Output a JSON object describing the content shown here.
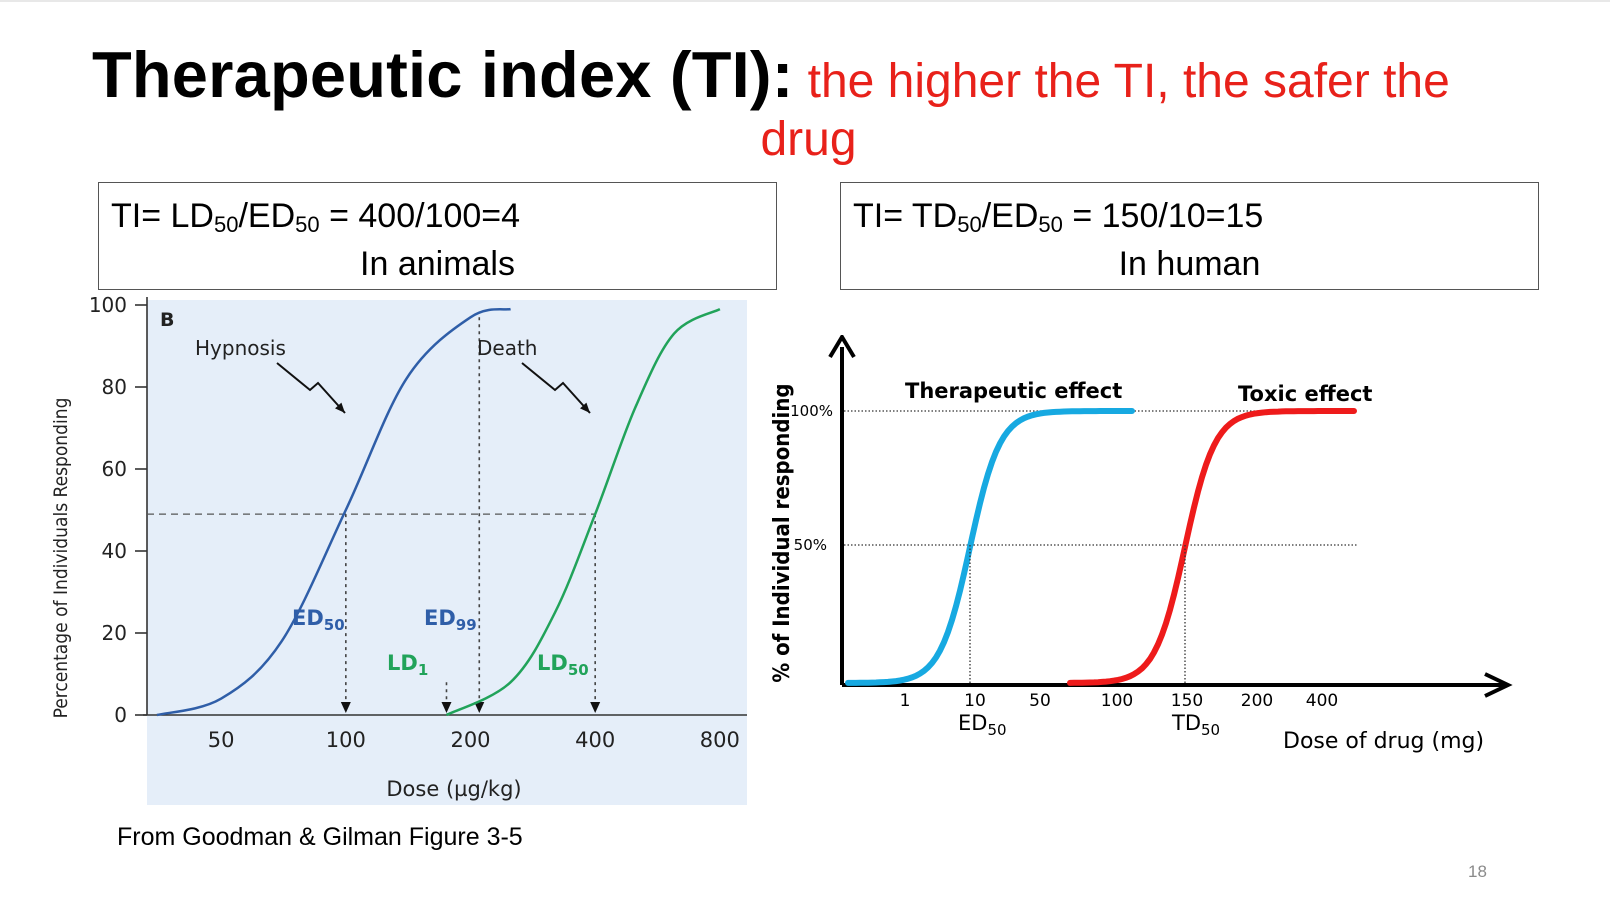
{
  "slide": {
    "title_bold": "Therapeutic index (TI):",
    "title_red_1": "the higher the TI, the safer the",
    "title_red_2": "drug",
    "box_left": {
      "prefix": "TI= LD",
      "sub1": "50",
      "mid": "/ED",
      "sub2": "50",
      "suffix": " = 400/100=4",
      "line2": "In animals"
    },
    "box_right": {
      "prefix": "TI= TD",
      "sub1": "50",
      "mid": "/ED",
      "sub2": "50",
      "suffix": " = 150/10=15",
      "line2": "In human"
    },
    "footnote": "From Goodman & Gilman Figure 3-5",
    "page_number": "18"
  },
  "chart_data": [
    {
      "type": "line",
      "panel_label": "B",
      "ylabel": "Percentage of Individuals Responding",
      "xlabel": "Dose (µg/kg)",
      "x_scale": "log",
      "x_ticks": [
        "50",
        "100",
        "200",
        "400",
        "800"
      ],
      "y_ticks": [
        "0",
        "20",
        "40",
        "60",
        "80",
        "100"
      ],
      "ylim": [
        0,
        100
      ],
      "series": [
        {
          "name": "Hypnosis",
          "color": "#2f5ea8",
          "x": [
            35,
            50,
            70,
            100,
            140,
            200,
            250
          ],
          "y": [
            0,
            4,
            18,
            50,
            82,
            97,
            99
          ]
        },
        {
          "name": "Death",
          "color": "#21a35a",
          "x": [
            175,
            250,
            320,
            400,
            500,
            620,
            800
          ],
          "y": [
            0,
            8,
            25,
            49,
            75,
            93,
            99
          ]
        }
      ],
      "annotations": [
        {
          "text": "ED",
          "sub": "50",
          "color": "#2f5ea8",
          "x": 100
        },
        {
          "text": "ED",
          "sub": "99",
          "color": "#2f5ea8",
          "x": 210
        },
        {
          "text": "LD",
          "sub": "1",
          "color": "#21a35a",
          "x": 175
        },
        {
          "text": "LD",
          "sub": "50",
          "color": "#21a35a",
          "x": 400
        }
      ],
      "background": "#e5eef9"
    },
    {
      "type": "line",
      "ylabel": "% of Individual responding",
      "xlabel": "Dose of drug (mg)",
      "x_ticks": [
        "1",
        "10",
        "50",
        "100",
        "150",
        "200",
        "400"
      ],
      "y_ticks": [
        "50%",
        "100%"
      ],
      "series": [
        {
          "name": "Therapeutic  effect",
          "color": "#17a9e1",
          "x50": 10
        },
        {
          "name": "Toxic effect",
          "color": "#ee1b1b",
          "x50": 150
        }
      ],
      "annotations": [
        {
          "text": "ED",
          "sub": "50",
          "x": 10
        },
        {
          "text": "TD",
          "sub": "50",
          "x": 150
        }
      ]
    }
  ]
}
